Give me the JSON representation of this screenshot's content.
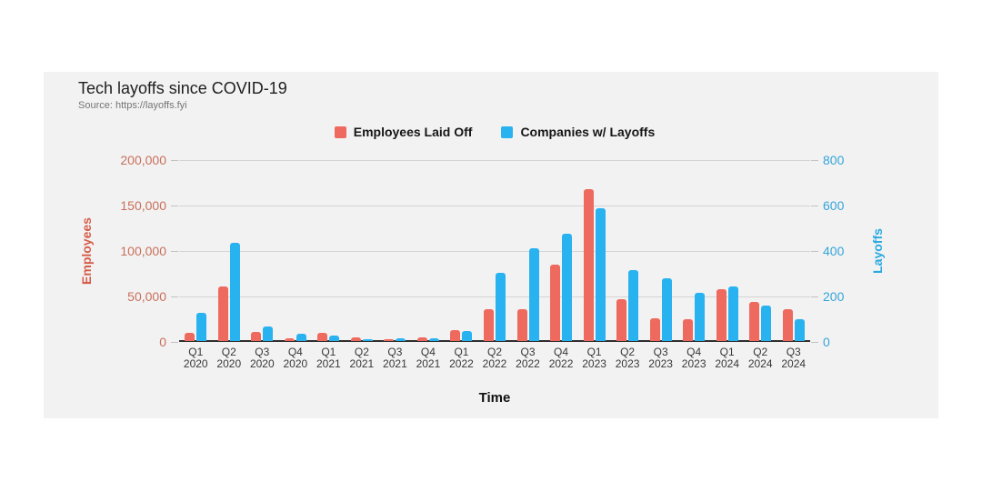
{
  "page": {
    "background": "#ffffff",
    "panel_background": "#f2f2f2"
  },
  "header": {
    "title": "Tech layoffs since COVID-19",
    "source": "Source: https://layoffs.fyi"
  },
  "legend": [
    {
      "label": "Employees Laid Off",
      "color": "#ee695e"
    },
    {
      "label": "Companies w/ Layoffs",
      "color": "#29b2f0"
    }
  ],
  "chart_data": {
    "type": "bar",
    "title": "Tech layoffs since COVID-19",
    "subtitle": "Source: https://layoffs.fyi",
    "xlabel": "Time",
    "grid": true,
    "legend_position": "top-center",
    "categories": [
      "Q1 2020",
      "Q2 2020",
      "Q3 2020",
      "Q4 2020",
      "Q1 2021",
      "Q2 2021",
      "Q3 2021",
      "Q4 2021",
      "Q1 2022",
      "Q2 2022",
      "Q3 2022",
      "Q4 2022",
      "Q1 2023",
      "Q2 2023",
      "Q3 2023",
      "Q4 2023",
      "Q1 2024",
      "Q2 2024",
      "Q3 2024"
    ],
    "series": [
      {
        "name": "Employees Laid Off",
        "axis": "left",
        "color": "#ee695e",
        "values": [
          9000,
          60000,
          10000,
          2500,
          9000,
          4000,
          2000,
          3500,
          12000,
          35000,
          35000,
          84000,
          167000,
          46000,
          25000,
          24000,
          57000,
          43000,
          35000
        ]
      },
      {
        "name": "Companies w/ Layoffs",
        "axis": "right",
        "color": "#29b2f0",
        "values": [
          125,
          430,
          65,
          32,
          24,
          6,
          10,
          12,
          44,
          300,
          410,
          470,
          585,
          310,
          275,
          210,
          240,
          155,
          95
        ]
      }
    ],
    "y_left": {
      "label": "Employees",
      "max": 200000,
      "min": 0,
      "ticks": [
        "200,000",
        "150,000",
        "100,000",
        "50,000",
        "0"
      ],
      "color": "#c9705c"
    },
    "y_right": {
      "label": "Layoffs",
      "max": 800,
      "min": 0,
      "ticks": [
        "800",
        "600",
        "400",
        "200",
        "0"
      ],
      "color": "#35a5d9"
    }
  }
}
